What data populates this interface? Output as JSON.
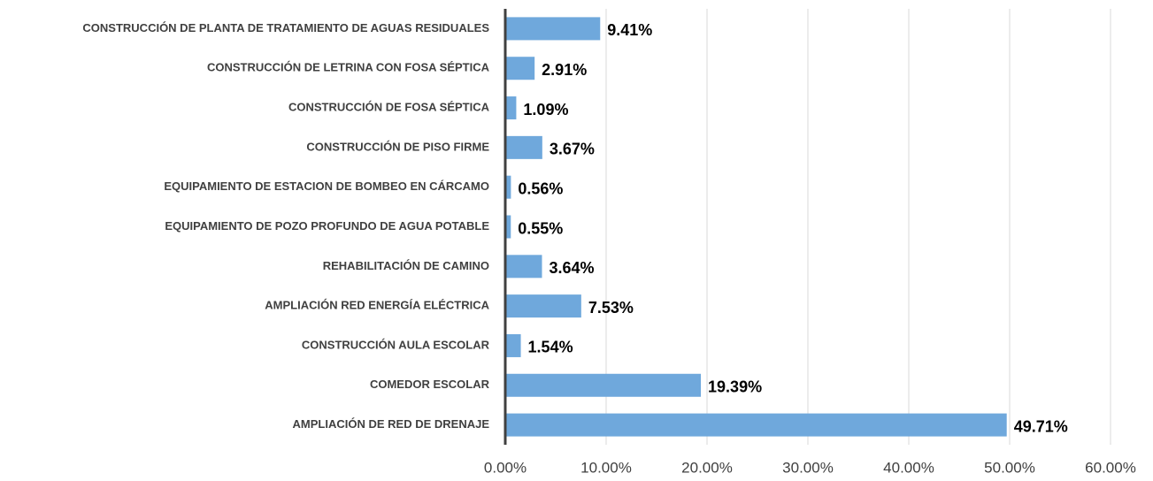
{
  "chart_data": {
    "type": "bar",
    "orientation": "horizontal",
    "categories": [
      "CONSTRUCCIÓN DE PLANTA DE TRATAMIENTO DE AGUAS RESIDUALES",
      "CONSTRUCCIÓN DE LETRINA CON FOSA SÉPTICA",
      "CONSTRUCCIÓN DE FOSA SÉPTICA",
      "CONSTRUCCIÓN DE PISO FIRME",
      "EQUIPAMIENTO DE ESTACION DE BOMBEO EN CÁRCAMO",
      "EQUIPAMIENTO DE POZO PROFUNDO DE AGUA POTABLE",
      "REHABILITACIÓN DE CAMINO",
      "AMPLIACIÓN RED ENERGÍA ELÉCTRICA",
      "CONSTRUCCIÓN AULA ESCOLAR",
      "COMEDOR ESCOLAR",
      "AMPLIACIÓN DE RED DE DRENAJE"
    ],
    "values": [
      9.41,
      2.91,
      1.09,
      3.67,
      0.56,
      0.55,
      3.64,
      7.53,
      1.54,
      19.39,
      49.71
    ],
    "value_labels": [
      "9.41%",
      "2.91%",
      "1.09%",
      "3.67%",
      "0.56%",
      "0.55%",
      "3.64%",
      "7.53%",
      "1.54%",
      "19.39%",
      "49.71%"
    ],
    "color": "#6fa8dc",
    "xlim": [
      0,
      60
    ],
    "xticks": [
      {
        "value": 0,
        "label": "0.00%"
      },
      {
        "value": 10,
        "label": "10.00%"
      },
      {
        "value": 20,
        "label": "20.00%"
      },
      {
        "value": 30,
        "label": "30.00%"
      },
      {
        "value": 40,
        "label": "40.00%"
      },
      {
        "value": 50,
        "label": "50.00%"
      },
      {
        "value": 60,
        "label": "60.00%"
      }
    ],
    "grid": true
  }
}
